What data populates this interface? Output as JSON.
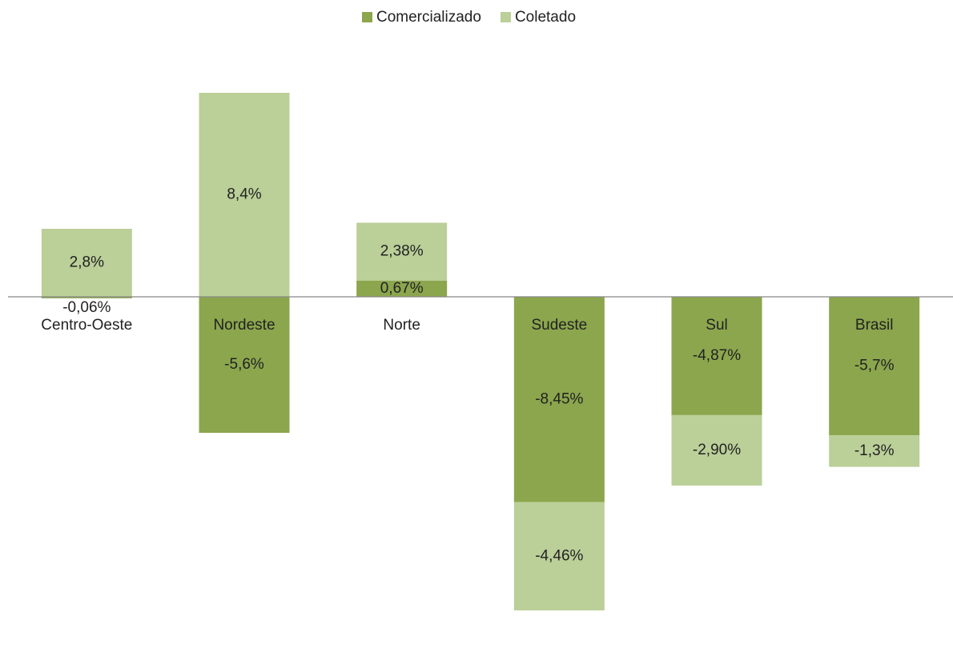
{
  "chart_data": {
    "type": "stacked_bar",
    "categories": [
      "Centro-Oeste",
      "Nordeste",
      "Norte",
      "Sudeste",
      "Sul",
      "Brasil"
    ],
    "series": [
      {
        "name": "Comercializado",
        "color": "#8ba64d",
        "values": [
          -0.06,
          -5.6,
          0.67,
          -8.45,
          -4.87,
          -5.7
        ],
        "value_labels": [
          "-0,06%",
          "-5,6%",
          "0,67%",
          "-8,45%",
          "-4,87%",
          "-5,7%"
        ]
      },
      {
        "name": "Coletado",
        "color": "#bbcf98",
        "values": [
          2.8,
          8.4,
          2.38,
          -4.46,
          -2.9,
          -1.3
        ],
        "value_labels": [
          "2,8%",
          "8,4%",
          "2,38%",
          "-4,46%",
          "-2,90%",
          "-1,3%"
        ]
      }
    ],
    "legend": "top"
  }
}
